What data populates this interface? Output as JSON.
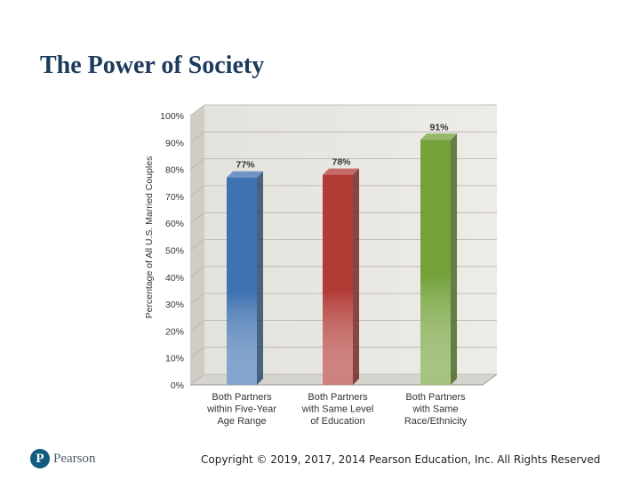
{
  "slide": {
    "title": "The Power of Society"
  },
  "chart_data": {
    "type": "bar",
    "title": "",
    "xlabel": "",
    "ylabel": "Percentage of All U.S. Married Couples",
    "ylim": [
      0,
      100
    ],
    "yticks": [
      0,
      10,
      20,
      30,
      40,
      50,
      60,
      70,
      80,
      90,
      100
    ],
    "ytick_labels": [
      "0%",
      "10%",
      "20%",
      "30%",
      "40%",
      "50%",
      "60%",
      "70%",
      "80%",
      "90%",
      "100%"
    ],
    "categories": [
      [
        "Both Partners",
        "within Five-Year",
        "Age Range"
      ],
      [
        "Both Partners",
        "with Same Level",
        "of Education"
      ],
      [
        "Both Partners",
        "with Same",
        "Race/Ethnicity"
      ]
    ],
    "values": [
      77,
      78,
      91
    ],
    "data_labels": [
      "77%",
      "78%",
      "91%"
    ],
    "colors": [
      "#3f72b0",
      "#b23b36",
      "#74a13a"
    ],
    "grid": true
  },
  "footer": {
    "logo_text": "Pearson",
    "logo_letter": "P",
    "copyright": "Copyright © 2019, 2017, 2014 Pearson Education, Inc. All Rights Reserved"
  }
}
